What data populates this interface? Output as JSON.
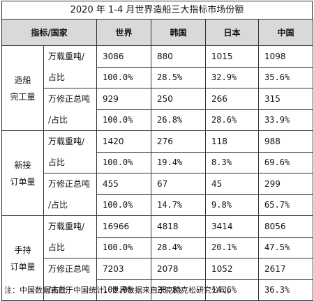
{
  "title": "2020 年 1-4 月世界造船三大指标市场份额",
  "header": {
    "label": "指标/国家",
    "cols": [
      "世界",
      "韩国",
      "日本",
      "中国"
    ]
  },
  "sections": [
    {
      "category": [
        "造船",
        "完工量"
      ],
      "groups": [
        {
          "unit": [
            "万载重吨/",
            "占比"
          ],
          "values": [
            "3086",
            "880",
            "1015",
            "1098"
          ],
          "shares": [
            "100.0%",
            "28.5%",
            "32.9%",
            "35.6%"
          ]
        },
        {
          "unit": [
            "万修正总吨",
            "/占比"
          ],
          "values": [
            "929",
            "250",
            "266",
            "315"
          ],
          "shares": [
            "100.0%",
            "26.8%",
            "28.6%",
            "33.9%"
          ]
        }
      ]
    },
    {
      "category": [
        "新接",
        "订单量"
      ],
      "groups": [
        {
          "unit": [
            "万载重吨/",
            "占比"
          ],
          "values": [
            "1420",
            "276",
            "118",
            "988"
          ],
          "shares": [
            "100.0%",
            "19.4%",
            "8.3%",
            "69.6%"
          ]
        },
        {
          "unit": [
            "万修正总吨",
            "/占比"
          ],
          "values": [
            "455",
            "67",
            "45",
            "299"
          ],
          "shares": [
            "100.0%",
            "14.7%",
            "9.8%",
            "65.7%"
          ]
        }
      ]
    },
    {
      "category": [
        "手持",
        "订单量"
      ],
      "groups": [
        {
          "unit": [
            "万载重吨/",
            "占比"
          ],
          "values": [
            "16966",
            "4818",
            "3414",
            "8056"
          ],
          "shares": [
            "100.0%",
            "28.4%",
            "20.1%",
            "47.5%"
          ]
        },
        {
          "unit": [
            "万修正总吨",
            "/占比"
          ],
          "values": [
            "7203",
            "2078",
            "1052",
            "2617"
          ],
          "shares": [
            "100.0%",
            "28.8%",
            "14.6%",
            "36.3%"
          ]
        }
      ]
    }
  ],
  "note": "注：中国数据来自于中国统计，世界数据来自于克拉克松研究公司。"
}
